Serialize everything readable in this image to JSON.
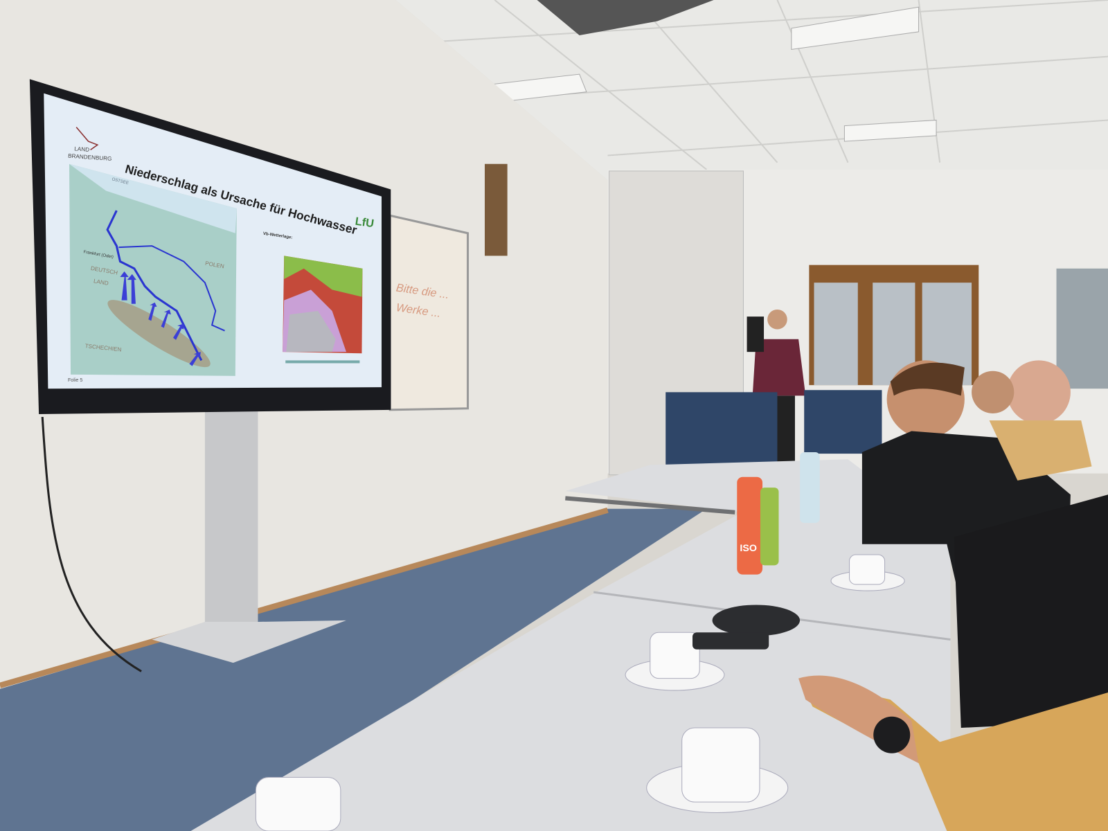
{
  "slide": {
    "logo_left": [
      "LAND",
      "BRANDENBURG"
    ],
    "logo_right": "LfU",
    "title": "Niederschlag als Ursache für Hochwasser",
    "map_labels": {
      "sea": "OSTSEE",
      "germany_1": "DEUTSCH",
      "germany_2": "LAND",
      "poland": "POLEN",
      "czech": "TSCHECHIEN",
      "city": "Frankfurt (Oder)"
    },
    "weather_heading": "Vb-Wetterlage:",
    "footer": "Folie 5"
  },
  "whiteboard": {
    "line1": "Bitte die ...",
    "line2": "Werke ..."
  },
  "bottle_label": "ISO",
  "colors": {
    "wall": "#e8e6e1",
    "floor": "#5f7491",
    "table": "#dcdde0",
    "screen_bg": "#e4edf6",
    "river": "#2a35d0",
    "title": "#1e1e1e"
  }
}
